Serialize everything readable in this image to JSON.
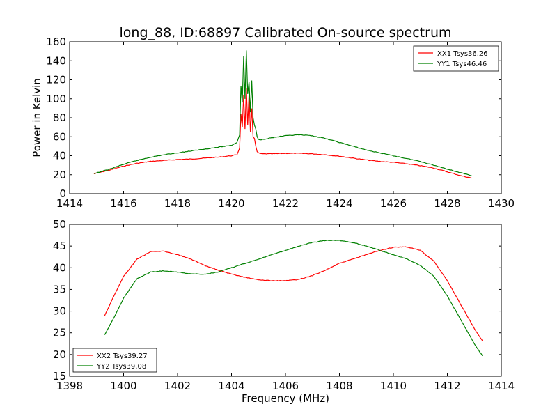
{
  "figure": {
    "title": "long_88, ID:68897 Calibrated On-source spectrum"
  },
  "chart_data": [
    {
      "type": "line",
      "title": "long_88, ID:68897 Calibrated On-source spectrum",
      "xlabel": "",
      "ylabel": "Power in Kelvin",
      "xlim": [
        1414,
        1430
      ],
      "ylim": [
        0,
        160
      ],
      "xticks": [
        1414,
        1416,
        1418,
        1420,
        1422,
        1424,
        1426,
        1428,
        1430
      ],
      "yticks": [
        0,
        20,
        40,
        60,
        80,
        100,
        120,
        140,
        160
      ],
      "grid": false,
      "legend": "top-right",
      "series": [
        {
          "name": "XX1 Tsys36.26",
          "color": "#ff0000",
          "x": [
            1414.9,
            1415.5,
            1416,
            1416.5,
            1417,
            1417.5,
            1418,
            1418.5,
            1419,
            1419.5,
            1420,
            1420.2,
            1420.3,
            1420.35,
            1420.4,
            1420.45,
            1420.5,
            1420.55,
            1420.6,
            1420.65,
            1420.7,
            1420.75,
            1420.8,
            1420.85,
            1420.9,
            1420.95,
            1421,
            1421.1,
            1421.5,
            1422,
            1422.5,
            1423,
            1423.5,
            1424,
            1424.5,
            1425,
            1425.5,
            1426,
            1426.5,
            1427,
            1427.5,
            1428,
            1428.5,
            1428.9
          ],
          "y": [
            21,
            25,
            29,
            32,
            34,
            35,
            36,
            36.5,
            37.5,
            38.5,
            40,
            41,
            48,
            84,
            70,
            104,
            68,
            111,
            72,
            105,
            65,
            90,
            60,
            58,
            50,
            44,
            43,
            42,
            42,
            42.5,
            42.5,
            42,
            41,
            39.5,
            37.5,
            35.5,
            34,
            33,
            31.5,
            29.5,
            27,
            23,
            19,
            16.5
          ]
        },
        {
          "name": "YY1 Tsys46.46",
          "color": "#008000",
          "x": [
            1414.9,
            1415.5,
            1416,
            1416.5,
            1417,
            1417.5,
            1418,
            1418.5,
            1419,
            1419.5,
            1420,
            1420.2,
            1420.3,
            1420.35,
            1420.4,
            1420.45,
            1420.5,
            1420.55,
            1420.6,
            1420.65,
            1420.7,
            1420.75,
            1420.8,
            1420.85,
            1420.9,
            1420.95,
            1421,
            1421.1,
            1421.5,
            1422,
            1422.5,
            1423,
            1423.5,
            1424,
            1424.5,
            1425,
            1425.5,
            1426,
            1426.5,
            1427,
            1427.5,
            1428,
            1428.5,
            1428.9
          ],
          "y": [
            21,
            26,
            31,
            35,
            38.5,
            41,
            43,
            45,
            47,
            49,
            51,
            54,
            62,
            114,
            96,
            145,
            100,
            151,
            105,
            118,
            86,
            119,
            80,
            72,
            68,
            60,
            57,
            57,
            59,
            61,
            62,
            61,
            58,
            54,
            50,
            46,
            43,
            40,
            37,
            34,
            30,
            26,
            22,
            19
          ]
        }
      ]
    },
    {
      "type": "line",
      "title": "",
      "xlabel": "Frequency (MHz)",
      "ylabel": "",
      "xlim": [
        1398,
        1414
      ],
      "ylim": [
        15,
        50
      ],
      "xticks": [
        1398,
        1400,
        1402,
        1404,
        1406,
        1408,
        1410,
        1412,
        1414
      ],
      "yticks": [
        15,
        20,
        25,
        30,
        35,
        40,
        45,
        50
      ],
      "grid": false,
      "legend": "bottom-left",
      "series": [
        {
          "name": "XX2 Tsys39.27",
          "color": "#ff0000",
          "x": [
            1399.3,
            1399.6,
            1400,
            1400.5,
            1401,
            1401.5,
            1402,
            1402.5,
            1403,
            1403.5,
            1404,
            1404.5,
            1405,
            1405.5,
            1406,
            1406.5,
            1407,
            1407.5,
            1408,
            1408.5,
            1409,
            1409.5,
            1410,
            1410.5,
            1411,
            1411.5,
            1412,
            1412.5,
            1413,
            1413.3
          ],
          "y": [
            29,
            33,
            38,
            42,
            43.7,
            43.8,
            43,
            42,
            40.5,
            39.5,
            38.5,
            37.8,
            37.2,
            37,
            37,
            37.3,
            38.2,
            39.5,
            41,
            42,
            43,
            44,
            44.7,
            44.8,
            44,
            41.5,
            37,
            31.5,
            26,
            23.2
          ]
        },
        {
          "name": "YY2 Tsys39.08",
          "color": "#008000",
          "x": [
            1399.3,
            1399.6,
            1400,
            1400.5,
            1401,
            1401.5,
            1402,
            1402.5,
            1403,
            1403.5,
            1404,
            1404.5,
            1405,
            1405.5,
            1406,
            1406.5,
            1407,
            1407.5,
            1408,
            1408.5,
            1409,
            1409.5,
            1410,
            1410.5,
            1411,
            1411.5,
            1412,
            1412.5,
            1413,
            1413.3
          ],
          "y": [
            24.5,
            28,
            33,
            37.5,
            39,
            39.3,
            39,
            38.6,
            38.5,
            39,
            40,
            41,
            42,
            43,
            44,
            45,
            45.8,
            46.3,
            46.3,
            45.8,
            45,
            44,
            43,
            42,
            40.5,
            38,
            33.5,
            28,
            22.5,
            19.7
          ]
        }
      ]
    }
  ]
}
